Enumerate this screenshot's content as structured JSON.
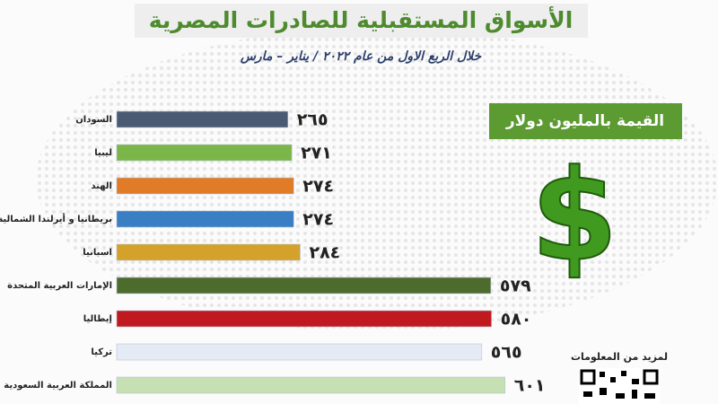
{
  "chart_data": {
    "type": "bar",
    "orientation": "horizontal",
    "title": "الأسواق المستقبلية للصادرات المصرية",
    "subtitle": "خلال الربع الاول من عام ٢٠٢٢ / يناير – مارس",
    "unit_note": "القيمة بالمليون دولار",
    "currency_symbol": "$",
    "footer": "لمزيد من المعلومات",
    "categories": [
      "السودان",
      "ليبيا",
      "الهند",
      "بريطانيا و أيرلندا الشمالية",
      "اسبانيا",
      "الإمارات العربية المتحدة",
      "إيطاليا",
      "تركيا",
      "المملكة العربية السعودية"
    ],
    "values": [
      265,
      271,
      274,
      274,
      284,
      579,
      580,
      565,
      601
    ],
    "value_labels": [
      "٢٦٥",
      "٢٧١",
      "٢٧٤",
      "٢٧٤",
      "٢٨٤",
      "٥٧٩",
      "٥٨٠",
      "٥٦٥",
      "٦٠١"
    ],
    "colors": [
      "#4a5a73",
      "#7ab648",
      "#e07b27",
      "#3a7ec4",
      "#d4a22a",
      "#4e6b2e",
      "#c0191f",
      "#e4ebf5",
      "#c6e0b4"
    ]
  }
}
